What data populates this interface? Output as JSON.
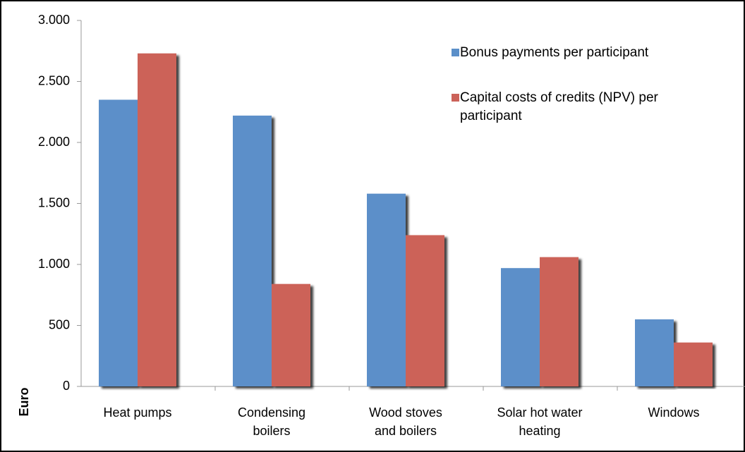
{
  "chart_data": {
    "type": "bar",
    "y_label": "Euro",
    "categories": [
      "Heat pumps",
      [
        "Condensing",
        "boilers"
      ],
      [
        "Wood stoves",
        "and boilers"
      ],
      [
        "Solar hot water",
        "heating"
      ],
      "Windows"
    ],
    "series": [
      {
        "name": "Bonus payments per participant",
        "color": "#5b8fc9",
        "values": [
          2350,
          2220,
          1580,
          970,
          550
        ]
      },
      {
        "name": "Capital costs of credits (NPV) per participant",
        "color": "#cc6259",
        "values": [
          2730,
          840,
          1240,
          1060,
          360
        ]
      }
    ],
    "ylim": [
      0,
      3000
    ],
    "yticks": [
      {
        "value": 0,
        "label": "0"
      },
      {
        "value": 500,
        "label": "500"
      },
      {
        "value": 1000,
        "label": "1.000"
      },
      {
        "value": 1500,
        "label": "1.500"
      },
      {
        "value": 2000,
        "label": "2.000"
      },
      {
        "value": 2500,
        "label": "2.500"
      },
      {
        "value": 3000,
        "label": "3.000"
      }
    ],
    "legend": "top-right",
    "grid": false
  }
}
